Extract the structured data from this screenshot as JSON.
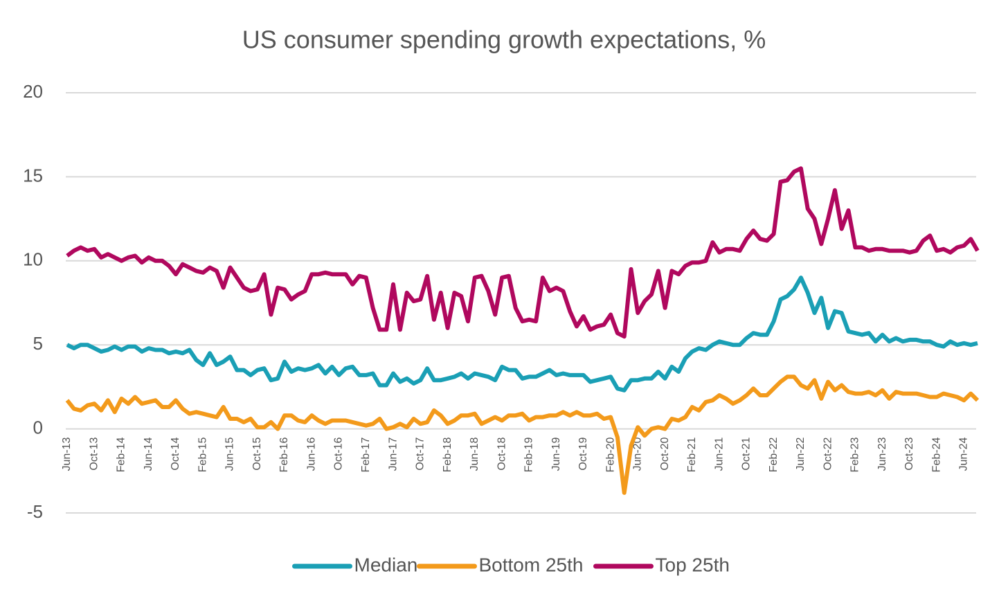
{
  "chart_data": {
    "type": "line",
    "title": "US consumer spending growth expectations, %",
    "categories": [
      "Jun-13",
      null,
      null,
      null,
      "Oct-13",
      null,
      null,
      null,
      "Feb-14",
      null,
      null,
      null,
      "Jun-14",
      null,
      null,
      null,
      "Oct-14",
      null,
      null,
      null,
      "Feb-15",
      null,
      null,
      null,
      "Jun-15",
      null,
      null,
      null,
      "Oct-15",
      null,
      null,
      null,
      "Feb-16",
      null,
      null,
      null,
      "Jun-16",
      null,
      null,
      null,
      "Oct-16",
      null,
      null,
      null,
      "Feb-17",
      null,
      null,
      null,
      "Jun-17",
      null,
      null,
      null,
      "Oct-17",
      null,
      null,
      null,
      "Feb-18",
      null,
      null,
      null,
      "Jun-18",
      null,
      null,
      null,
      "Oct-18",
      null,
      null,
      null,
      "Feb-19",
      null,
      null,
      null,
      "Jun-19",
      null,
      null,
      null,
      "Oct-19",
      null,
      null,
      null,
      "Feb-20",
      null,
      null,
      null,
      "Jun-20",
      null,
      null,
      null,
      "Oct-20",
      null,
      null,
      null,
      "Feb-21",
      null,
      null,
      null,
      "Jun-21",
      null,
      null,
      null,
      "Oct-21",
      null,
      null,
      null,
      "Feb-22",
      null,
      null,
      null,
      "Jun-22",
      null,
      null,
      null,
      "Oct-22",
      null,
      null,
      null,
      "Feb-23",
      null,
      null,
      null,
      "Jun-23",
      null,
      null,
      null,
      "Oct-23",
      null,
      null,
      null,
      "Feb-24",
      null,
      null,
      null,
      "Jun-24",
      null,
      null
    ],
    "series": [
      {
        "name": "Median",
        "color": "#1a9fb5",
        "values": [
          5.0,
          4.8,
          5.0,
          5.0,
          4.8,
          4.6,
          4.7,
          4.9,
          4.7,
          4.9,
          4.9,
          4.6,
          4.8,
          4.7,
          4.7,
          4.5,
          4.6,
          4.5,
          4.7,
          4.1,
          3.8,
          4.5,
          3.8,
          4.0,
          4.3,
          3.5,
          3.5,
          3.2,
          3.5,
          3.6,
          2.9,
          3.0,
          4.0,
          3.4,
          3.6,
          3.5,
          3.6,
          3.8,
          3.3,
          3.7,
          3.2,
          3.6,
          3.7,
          3.2,
          3.2,
          3.3,
          2.6,
          2.6,
          3.3,
          2.8,
          3.0,
          2.7,
          2.9,
          3.6,
          2.9,
          2.9,
          3.0,
          3.1,
          3.3,
          3.0,
          3.3,
          3.2,
          3.1,
          2.9,
          3.7,
          3.5,
          3.5,
          3.0,
          3.1,
          3.1,
          3.3,
          3.5,
          3.2,
          3.3,
          3.2,
          3.2,
          3.2,
          2.8,
          2.9,
          3.0,
          3.1,
          2.4,
          2.3,
          2.9,
          2.9,
          3.0,
          3.0,
          3.4,
          3.0,
          3.7,
          3.4,
          4.2,
          4.6,
          4.8,
          4.7,
          5.0,
          5.2,
          5.1,
          5.0,
          5.0,
          5.4,
          5.7,
          5.6,
          5.6,
          6.4,
          7.7,
          7.9,
          8.3,
          9.0,
          8.1,
          6.9,
          7.8,
          6.0,
          7.0,
          6.9,
          5.8,
          5.7,
          5.6,
          5.7,
          5.2,
          5.6,
          5.2,
          5.4,
          5.2,
          5.3,
          5.3,
          5.2,
          5.2,
          5.0,
          4.9,
          5.2,
          5.0,
          5.1,
          5.0,
          5.1
        ]
      },
      {
        "name": "Bottom 25th",
        "color": "#f39a1b",
        "values": [
          1.7,
          1.2,
          1.1,
          1.4,
          1.5,
          1.1,
          1.7,
          1.0,
          1.8,
          1.5,
          1.9,
          1.5,
          1.6,
          1.7,
          1.3,
          1.3,
          1.7,
          1.2,
          0.9,
          1.0,
          0.9,
          0.8,
          0.7,
          1.3,
          0.6,
          0.6,
          0.4,
          0.6,
          0.1,
          0.1,
          0.4,
          0.0,
          0.8,
          0.8,
          0.5,
          0.4,
          0.8,
          0.5,
          0.3,
          0.5,
          0.5,
          0.5,
          0.4,
          0.3,
          0.2,
          0.3,
          0.6,
          0.0,
          0.1,
          0.3,
          0.1,
          0.6,
          0.3,
          0.4,
          1.1,
          0.8,
          0.3,
          0.5,
          0.8,
          0.8,
          0.9,
          0.3,
          0.5,
          0.7,
          0.5,
          0.8,
          0.8,
          0.9,
          0.5,
          0.7,
          0.7,
          0.8,
          0.8,
          1.0,
          0.8,
          1.0,
          0.8,
          0.8,
          0.9,
          0.6,
          0.7,
          -0.5,
          -3.8,
          -1.0,
          0.1,
          -0.4,
          0.0,
          0.1,
          0.0,
          0.6,
          0.5,
          0.7,
          1.3,
          1.1,
          1.6,
          1.7,
          2.0,
          1.8,
          1.5,
          1.7,
          2.0,
          2.4,
          2.0,
          2.0,
          2.4,
          2.8,
          3.1,
          3.1,
          2.6,
          2.4,
          2.9,
          1.8,
          2.8,
          2.3,
          2.6,
          2.2,
          2.1,
          2.1,
          2.2,
          2.0,
          2.3,
          1.8,
          2.2,
          2.1,
          2.1,
          2.1,
          2.0,
          1.9,
          1.9,
          2.1,
          2.0,
          1.9,
          1.7,
          2.1,
          1.7
        ]
      },
      {
        "name": "Top 25th",
        "color": "#b0085e",
        "values": [
          10.3,
          10.6,
          10.8,
          10.6,
          10.7,
          10.2,
          10.4,
          10.2,
          10.0,
          10.2,
          10.3,
          9.9,
          10.2,
          10.0,
          10.0,
          9.7,
          9.2,
          9.8,
          9.6,
          9.4,
          9.3,
          9.6,
          9.4,
          8.4,
          9.6,
          9.0,
          8.4,
          8.2,
          8.3,
          9.2,
          6.8,
          8.4,
          8.3,
          7.7,
          8.0,
          8.2,
          9.2,
          9.2,
          9.3,
          9.2,
          9.2,
          9.2,
          8.6,
          9.1,
          9.0,
          7.2,
          5.9,
          5.9,
          8.6,
          5.9,
          8.1,
          7.6,
          7.7,
          9.1,
          6.5,
          8.1,
          6.0,
          8.1,
          7.9,
          6.4,
          9.0,
          9.1,
          8.2,
          6.8,
          9.0,
          9.1,
          7.2,
          6.4,
          6.5,
          6.4,
          9.0,
          8.2,
          8.4,
          8.2,
          7.0,
          6.1,
          6.7,
          5.9,
          6.1,
          6.2,
          6.8,
          5.7,
          5.5,
          9.5,
          6.9,
          7.6,
          8.0,
          9.4,
          7.2,
          9.4,
          9.2,
          9.7,
          9.9,
          9.9,
          10.0,
          11.1,
          10.5,
          10.7,
          10.7,
          10.6,
          11.3,
          11.8,
          11.3,
          11.2,
          11.6,
          14.7,
          14.8,
          15.3,
          15.5,
          13.1,
          12.5,
          11.0,
          12.5,
          14.2,
          11.9,
          13.0,
          10.8,
          10.8,
          10.6,
          10.7,
          10.7,
          10.6,
          10.6,
          10.6,
          10.5,
          10.6,
          11.2,
          11.5,
          10.6,
          10.7,
          10.5,
          10.8,
          10.9,
          11.3,
          10.6
        ]
      }
    ],
    "ylim": [
      -5,
      20
    ],
    "yticks": [
      -5,
      0,
      5,
      10,
      15,
      20
    ],
    "grid": true,
    "legend": "bottom"
  }
}
